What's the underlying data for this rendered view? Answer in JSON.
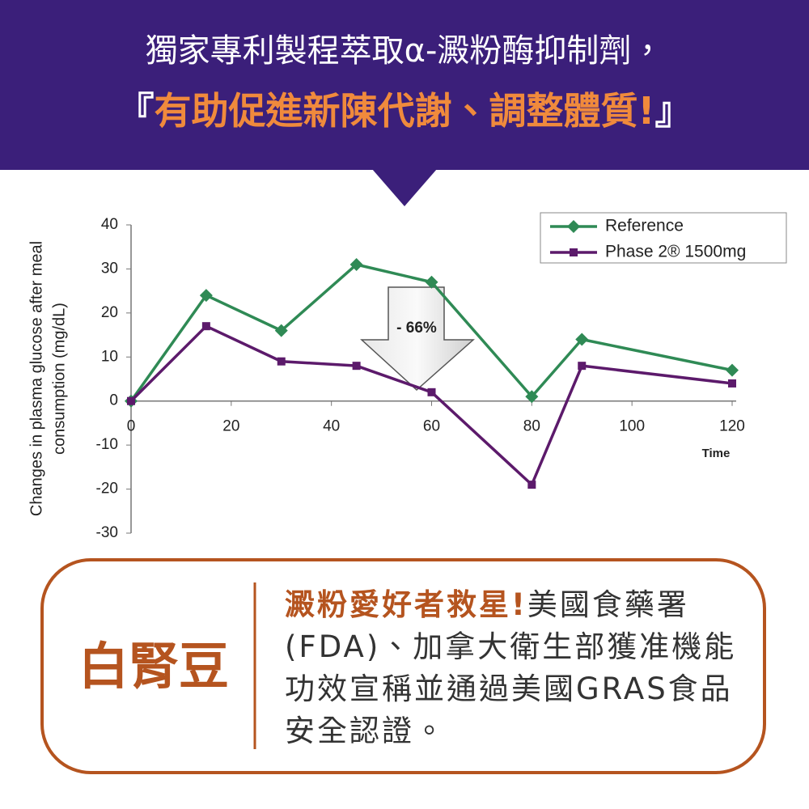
{
  "header": {
    "line1": "獨家專利製程萃取α-澱粉酶抑制劑，",
    "line2": [
      "『",
      "有助促進新陳代謝、調整體質!",
      "』"
    ]
  },
  "chart_data": {
    "type": "line",
    "ylabel": [
      "Changes in plasma glucose after meal",
      "consumption (mg/dL)"
    ],
    "xlabel": "Time",
    "x": [
      0,
      15,
      30,
      45,
      60,
      80,
      90,
      120
    ],
    "series": [
      {
        "name": "Reference",
        "color": "#2f8a55",
        "marker": "diamond",
        "values": [
          0,
          24,
          16,
          31,
          27,
          1,
          14,
          7
        ]
      },
      {
        "name": "Phase 2® 1500mg",
        "color": "#5c1a6b",
        "marker": "square",
        "values": [
          0,
          17,
          9,
          8,
          2,
          -19,
          8,
          4
        ]
      }
    ],
    "xlim": [
      0,
      120
    ],
    "xticks": [
      0,
      20,
      40,
      60,
      80,
      100,
      120
    ],
    "ylim": [
      -30,
      40
    ],
    "yticks": [
      -30,
      -20,
      -10,
      0,
      10,
      20,
      30,
      40
    ],
    "grid": false,
    "legend": "upper right",
    "annotation": "- 66%"
  },
  "callout": {
    "name": "白腎豆",
    "highlight": "澱粉愛好者救星!",
    "text": "美國食藥署(FDA)、加拿大衛生部獲准機能功效宣稱並通過美國GRAS食品安全認證。"
  }
}
